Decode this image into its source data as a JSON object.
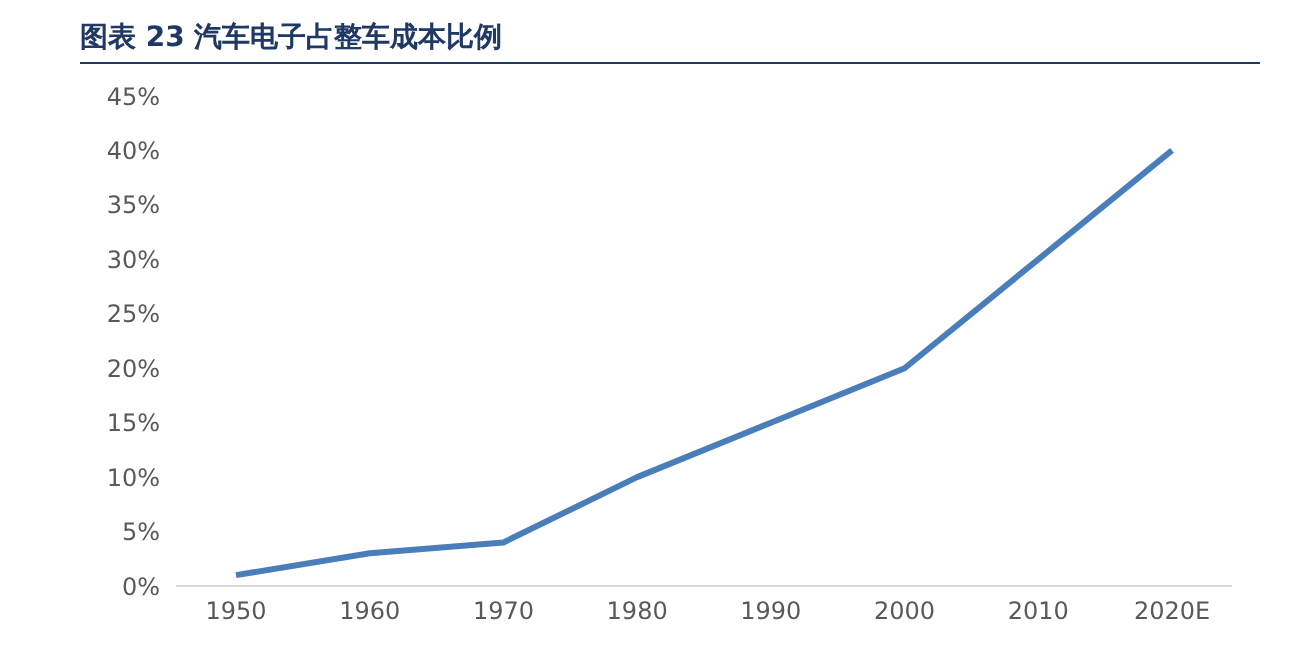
{
  "chart_data": {
    "type": "line",
    "title": "图表 23 汽车电子占整车成本比例",
    "categories": [
      "1950",
      "1960",
      "1970",
      "1980",
      "1990",
      "2000",
      "2010",
      "2020E"
    ],
    "series": [
      {
        "color": "#4a7ebb",
        "values": [
          1,
          3,
          4,
          10,
          15,
          20,
          30,
          40
        ]
      }
    ],
    "ylim": [
      0,
      45
    ],
    "yticks": [
      {
        "value": 0,
        "label": "0%"
      },
      {
        "value": 5,
        "label": "5%"
      },
      {
        "value": 10,
        "label": "10%"
      },
      {
        "value": 15,
        "label": "15%"
      },
      {
        "value": 20,
        "label": "20%"
      },
      {
        "value": 25,
        "label": "25%"
      },
      {
        "value": 30,
        "label": "30%"
      },
      {
        "value": 35,
        "label": "35%"
      },
      {
        "value": 40,
        "label": "40%"
      },
      {
        "value": 45,
        "label": "45%"
      }
    ],
    "grid": false,
    "legend": false,
    "marker": "none",
    "line_style": "solid"
  }
}
